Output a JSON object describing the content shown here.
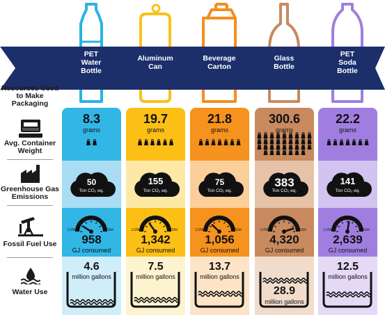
{
  "row_labels": {
    "resources": "Resources Used to Make Packaging",
    "weight": "Avg. Container Weight",
    "ghg": "Greenhouse Gas Emissions",
    "fossil": "Fossil Fuel Use",
    "water": "Water Use"
  },
  "gauge_labels": {
    "low": "LOW",
    "high": "HIGH"
  },
  "products": [
    {
      "name": "PET Water Bottle",
      "line1": "PET",
      "line2": "Water",
      "line3": "Bottle",
      "weight": "8.3",
      "weight_unit": "grams",
      "weights_shown": 2,
      "ghg": "50",
      "ghg_unit": "Ton CO₂ eq.",
      "fossil": "958",
      "fossil_unit": "GJ consumed",
      "gauge_level": 0.18,
      "water": "4.6",
      "water_unit": "million gallons",
      "water_level": 0.15,
      "color_top": "#31b6e6",
      "color_mid": "#a9ddf3",
      "color_bot": "#cfeefa",
      "stroke": "#29b3e3"
    },
    {
      "name": "Aluminum Can",
      "line1": "Aluminum",
      "line2": "Can",
      "line3": "",
      "weight": "19.7",
      "weight_unit": "grams",
      "weights_shown": 6,
      "ghg": "155",
      "ghg_unit": "Ton CO₂ eq.",
      "fossil": "1,342",
      "fossil_unit": "GJ consumed",
      "gauge_level": 0.3,
      "water": "7.5",
      "water_unit": "million gallons",
      "water_level": 0.22,
      "color_top": "#fbbf16",
      "color_mid": "#fde8a6",
      "color_bot": "#fef3cf",
      "stroke": "#f8c21c"
    },
    {
      "name": "Beverage Carton",
      "line1": "Beverage",
      "line2": "Carton",
      "line3": "",
      "weight": "21.8",
      "weight_unit": "grams",
      "weights_shown": 7,
      "ghg": "75",
      "ghg_unit": "Ton CO₂ eq.",
      "fossil": "1,056",
      "fossil_unit": "GJ consumed",
      "gauge_level": 0.24,
      "water": "13.7",
      "water_unit": "million gallons",
      "water_level": 0.42,
      "color_top": "#f6921e",
      "color_mid": "#fccf9a",
      "color_bot": "#fde4c7",
      "stroke": "#f48e1c"
    },
    {
      "name": "Glass Bottle",
      "line1": "Glass",
      "line2": "Bottle",
      "line3": "",
      "weight": "300.6",
      "weight_unit": "grams",
      "weights_shown": 34,
      "ghg": "383",
      "ghg_unit": "Ton CO₂ eq.",
      "fossil": "4,320",
      "fossil_unit": "GJ consumed",
      "gauge_level": 0.9,
      "water": "28.9",
      "water_unit": "million gallons",
      "water_level": 0.85,
      "color_top": "#c88a5e",
      "color_mid": "#e6c3a8",
      "color_bot": "#f1dccb",
      "stroke": "#c78a60"
    },
    {
      "name": "PET Soda Bottle",
      "line1": "PET",
      "line2": "Soda",
      "line3": "Bottle",
      "weight": "22.2",
      "weight_unit": "grams",
      "weights_shown": 7,
      "ghg": "141",
      "ghg_unit": "Ton CO₂ eq.",
      "fossil": "2,639",
      "fossil_unit": "GJ consumed",
      "gauge_level": 0.55,
      "water": "12.5",
      "water_unit": "million gallons",
      "water_level": 0.4,
      "color_top": "#a07ee0",
      "color_mid": "#d3c3f1",
      "color_bot": "#e4daf6",
      "stroke": "#9e7fde"
    }
  ],
  "colors": {
    "banner": "#1c2f6b",
    "text": "#111111"
  }
}
